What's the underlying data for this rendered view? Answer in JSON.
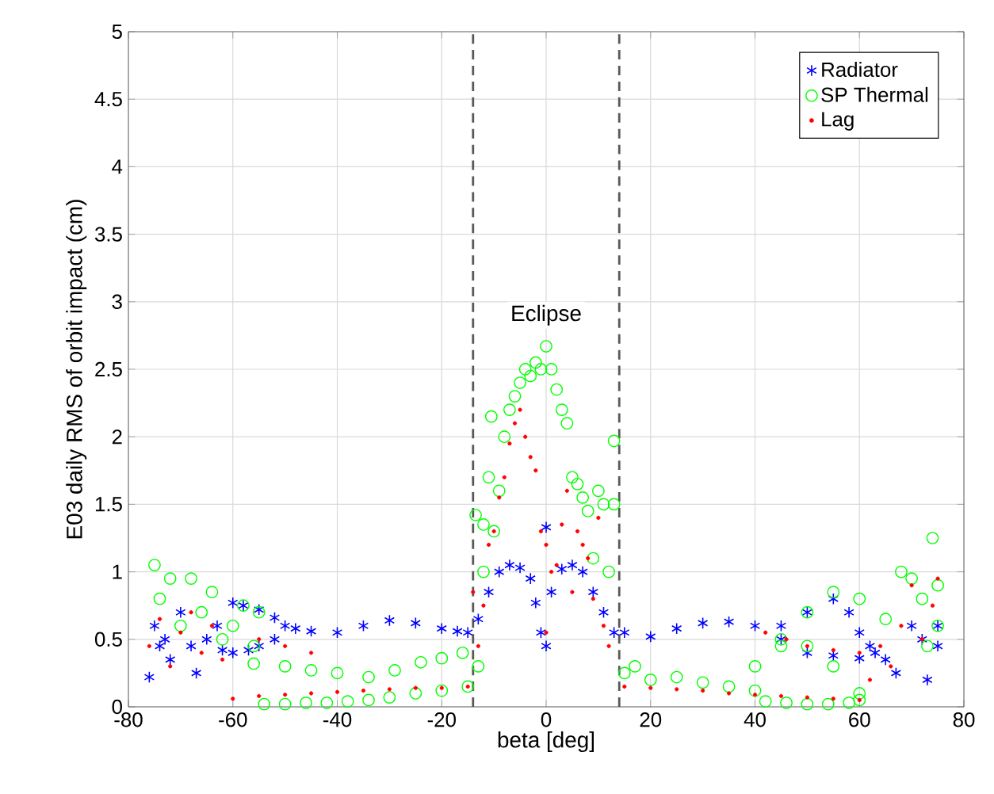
{
  "chart_data": {
    "type": "scatter",
    "xlabel": "beta [deg]",
    "ylabel": "E03 daily RMS of orbit impact (cm)",
    "xlim": [
      -80,
      80
    ],
    "xticks": [
      -80,
      -60,
      -40,
      -20,
      0,
      20,
      40,
      60,
      80
    ],
    "ylim": [
      0,
      5
    ],
    "yticks": [
      0,
      0.5,
      1,
      1.5,
      2,
      2.5,
      3,
      3.5,
      4,
      4.5,
      5
    ],
    "grid": true,
    "legend": "top right",
    "ref_lines": [
      {
        "axis": "x",
        "value": -14,
        "color": "#595959",
        "line_style": "dashed"
      },
      {
        "axis": "x",
        "value": 14,
        "color": "#595959",
        "line_style": "dashed"
      }
    ],
    "annotations": [
      "Eclipse"
    ],
    "series": [
      {
        "name": "Radiator",
        "color": "#0000ff",
        "marker": "cross",
        "x": [
          -76,
          -75,
          -74,
          -73,
          -72,
          -70,
          -68,
          -67,
          -65,
          -63,
          -62,
          -60,
          -58,
          -55,
          -52,
          -50,
          -48,
          -45,
          -40,
          -35,
          -30,
          -25,
          -20,
          -17,
          -15,
          -60,
          -57,
          -55,
          -52,
          -13,
          -11,
          -9,
          -7,
          -5,
          -3,
          -2,
          -1,
          0,
          0,
          1,
          3,
          5,
          7,
          9,
          11,
          13,
          15,
          20,
          25,
          30,
          35,
          40,
          45,
          50,
          55,
          58,
          60,
          62,
          45,
          50,
          55,
          60,
          63,
          65,
          67,
          70,
          72,
          73,
          75,
          75
        ],
        "values": [
          0.22,
          0.6,
          0.45,
          0.5,
          0.35,
          0.7,
          0.45,
          0.25,
          0.5,
          0.6,
          0.42,
          0.77,
          0.75,
          0.72,
          0.66,
          0.6,
          0.58,
          0.56,
          0.55,
          0.6,
          0.64,
          0.62,
          0.58,
          0.56,
          0.55,
          0.4,
          0.42,
          0.45,
          0.5,
          0.65,
          0.85,
          1.0,
          1.05,
          1.03,
          0.95,
          0.77,
          0.55,
          1.33,
          0.45,
          0.85,
          1.02,
          1.05,
          1.0,
          0.85,
          0.7,
          0.55,
          0.55,
          0.52,
          0.58,
          0.62,
          0.63,
          0.6,
          0.6,
          0.7,
          0.8,
          0.7,
          0.55,
          0.45,
          0.5,
          0.4,
          0.38,
          0.36,
          0.4,
          0.35,
          0.25,
          0.6,
          0.5,
          0.2,
          0.45,
          0.6
        ]
      },
      {
        "name": "SP Thermal",
        "color": "#00ff00",
        "marker": "circle",
        "x": [
          -75,
          -74,
          -72,
          -70,
          -68,
          -66,
          -64,
          -62,
          -60,
          -58,
          -56,
          -55,
          -56,
          -50,
          -45,
          -40,
          -34,
          -29,
          -24,
          -20,
          -16,
          -54,
          -50,
          -46,
          -42,
          -38,
          -34,
          -30,
          -25,
          -20,
          -15,
          -13.5,
          -13,
          -12,
          -12,
          -11,
          -10.5,
          -10,
          -9,
          -8,
          -7,
          -6,
          -5,
          -4,
          -3,
          -2,
          -1,
          0,
          1,
          2,
          3,
          4,
          5,
          6,
          7,
          8,
          9,
          10,
          11,
          12,
          13,
          13,
          15,
          17,
          20,
          25,
          30,
          35,
          40,
          42,
          46,
          50,
          54,
          58,
          60,
          40,
          45,
          50,
          55,
          60,
          45,
          50,
          55,
          60,
          65,
          68,
          70,
          72,
          73,
          74,
          75,
          75
        ],
        "values": [
          1.05,
          0.8,
          0.95,
          0.6,
          0.95,
          0.7,
          0.85,
          0.5,
          0.6,
          0.75,
          0.45,
          0.7,
          0.32,
          0.3,
          0.27,
          0.25,
          0.22,
          0.27,
          0.33,
          0.36,
          0.4,
          0.02,
          0.02,
          0.03,
          0.03,
          0.04,
          0.05,
          0.07,
          0.1,
          0.12,
          0.15,
          1.42,
          0.3,
          1.0,
          1.35,
          1.7,
          2.15,
          1.3,
          1.6,
          2.0,
          2.2,
          2.3,
          2.4,
          2.5,
          2.45,
          2.55,
          2.5,
          2.67,
          2.5,
          2.35,
          2.2,
          2.1,
          1.7,
          1.65,
          1.55,
          1.45,
          1.1,
          1.6,
          1.5,
          1.0,
          1.97,
          1.5,
          0.25,
          0.3,
          0.2,
          0.22,
          0.18,
          0.15,
          0.12,
          0.04,
          0.03,
          0.02,
          0.02,
          0.03,
          0.05,
          0.3,
          0.45,
          0.7,
          0.85,
          0.8,
          0.5,
          0.45,
          0.3,
          0.1,
          0.65,
          1.0,
          0.95,
          0.8,
          0.45,
          1.25,
          0.9,
          0.6
        ]
      },
      {
        "name": "Lag",
        "color": "#ff0000",
        "marker": "dot",
        "x": [
          -76,
          -74,
          -72,
          -70,
          -68,
          -66,
          -64,
          -62,
          -60,
          -55,
          -50,
          -45,
          -40,
          -35,
          -30,
          -25,
          -20,
          -15,
          -55,
          -50,
          -45,
          -14,
          -13,
          -12,
          -11,
          -10,
          -9,
          -8,
          -7,
          -6,
          -5,
          -4,
          -3,
          -2,
          -1,
          0,
          0,
          1,
          2,
          3,
          4,
          5,
          6,
          7,
          8,
          9,
          10,
          11,
          12,
          15,
          20,
          25,
          30,
          35,
          40,
          45,
          50,
          55,
          60,
          42,
          46,
          50,
          55,
          60,
          62,
          64,
          66,
          68,
          70,
          72,
          74,
          75
        ],
        "values": [
          0.45,
          0.65,
          0.3,
          0.55,
          0.7,
          0.4,
          0.6,
          0.35,
          0.06,
          0.08,
          0.09,
          0.1,
          0.11,
          0.12,
          0.13,
          0.14,
          0.14,
          0.15,
          0.5,
          0.45,
          0.4,
          0.85,
          0.45,
          0.75,
          1.2,
          1.3,
          1.55,
          1.7,
          1.95,
          2.1,
          2.2,
          2.0,
          1.85,
          1.75,
          1.3,
          1.2,
          0.55,
          1.0,
          1.05,
          1.35,
          1.6,
          0.85,
          1.3,
          1.2,
          1.1,
          0.8,
          1.4,
          0.6,
          0.45,
          0.15,
          0.14,
          0.13,
          0.12,
          0.1,
          0.09,
          0.08,
          0.07,
          0.06,
          0.05,
          0.55,
          0.5,
          0.45,
          0.42,
          0.4,
          0.2,
          0.45,
          0.3,
          0.6,
          0.9,
          0.5,
          0.75,
          0.95
        ]
      }
    ]
  }
}
